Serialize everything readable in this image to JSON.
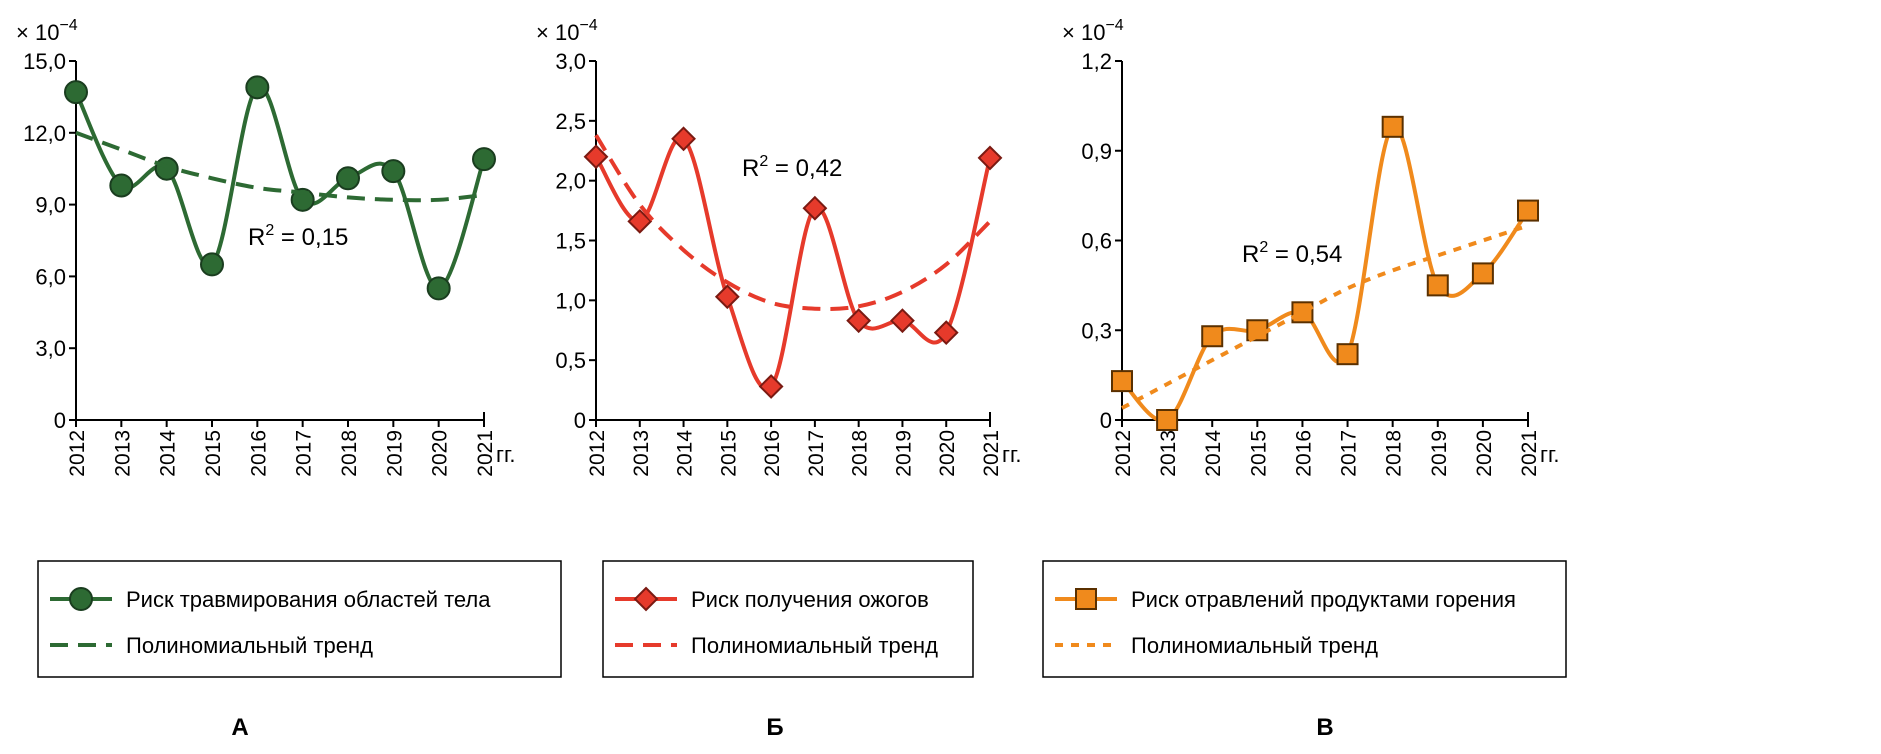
{
  "chart_data": [
    {
      "type": "line",
      "panel_label": "А",
      "multiplier": "× 10",
      "multiplier_exp": "−4",
      "x_unit": "гг.",
      "x": [
        "2012",
        "2013",
        "2014",
        "2015",
        "2016",
        "2017",
        "2018",
        "2019",
        "2020",
        "2021"
      ],
      "ylim": [
        0,
        15
      ],
      "yticks": [
        "0",
        "3,0",
        "6,0",
        "9,0",
        "12,0",
        "15,0"
      ],
      "ytick_values": [
        0,
        3,
        6,
        9,
        12,
        15
      ],
      "series": [
        {
          "name": "Риск травмирования областей тела",
          "values": [
            13.7,
            9.8,
            10.5,
            6.5,
            13.9,
            9.2,
            10.1,
            10.4,
            5.5,
            10.9
          ],
          "color": "#2d6a33",
          "marker": "circle",
          "style": "solid"
        },
        {
          "name": "Полиномиальный тренд",
          "values": [
            12.0,
            11.3,
            10.6,
            10.1,
            9.7,
            9.5,
            9.3,
            9.2,
            9.2,
            9.4
          ],
          "color": "#2d6a33",
          "style": "dashed"
        }
      ],
      "annotation": {
        "text": "R",
        "sup": "2",
        "suffix": " = 0,15"
      }
    },
    {
      "type": "line",
      "panel_label": "Б",
      "multiplier": "× 10",
      "multiplier_exp": "−4",
      "x_unit": "гг.",
      "x": [
        "2012",
        "2013",
        "2014",
        "2015",
        "2016",
        "2017",
        "2018",
        "2019",
        "2020",
        "2021"
      ],
      "ylim": [
        0,
        3.0
      ],
      "yticks": [
        "0",
        "0,5",
        "1,0",
        "1,5",
        "2,0",
        "2,5",
        "3,0"
      ],
      "ytick_values": [
        0,
        0.5,
        1.0,
        1.5,
        2.0,
        2.5,
        3.0
      ],
      "series": [
        {
          "name": "Риск получения ожогов",
          "values": [
            2.2,
            1.66,
            2.35,
            1.03,
            0.28,
            1.77,
            0.83,
            0.83,
            0.73,
            2.19
          ],
          "color": "#e63a2b",
          "marker": "diamond",
          "style": "solid"
        },
        {
          "name": "Полиномиальный тренд",
          "values": [
            2.38,
            1.8,
            1.42,
            1.15,
            0.98,
            0.93,
            0.95,
            1.07,
            1.3,
            1.66
          ],
          "color": "#e63a2b",
          "style": "dashed"
        }
      ],
      "annotation": {
        "text": "R",
        "sup": "2",
        "suffix": " = 0,42"
      }
    },
    {
      "type": "line",
      "panel_label": "В",
      "multiplier": "× 10",
      "multiplier_exp": "−4",
      "x_unit": "гг.",
      "x": [
        "2012",
        "2013",
        "2014",
        "2015",
        "2016",
        "2017",
        "2018",
        "2019",
        "2020",
        "2021"
      ],
      "ylim": [
        0,
        1.2
      ],
      "yticks": [
        "0",
        "0,3",
        "0,6",
        "0,9",
        "1,2"
      ],
      "ytick_values": [
        0,
        0.3,
        0.6,
        0.9,
        1.2
      ],
      "series": [
        {
          "name": "Риск отравлений продуктами горения",
          "values": [
            0.13,
            0.0,
            0.28,
            0.3,
            0.36,
            0.22,
            0.98,
            0.45,
            0.49,
            0.7
          ],
          "color": "#f08a1c",
          "marker": "square",
          "style": "solid"
        },
        {
          "name": "Полиномиальный тренд",
          "values": [
            0.04,
            0.12,
            0.2,
            0.28,
            0.36,
            0.44,
            0.5,
            0.55,
            0.6,
            0.65
          ],
          "color": "#f08a1c",
          "style": "dotted"
        }
      ],
      "annotation": {
        "text": "R",
        "sup": "2",
        "suffix": " = 0,54"
      }
    }
  ]
}
